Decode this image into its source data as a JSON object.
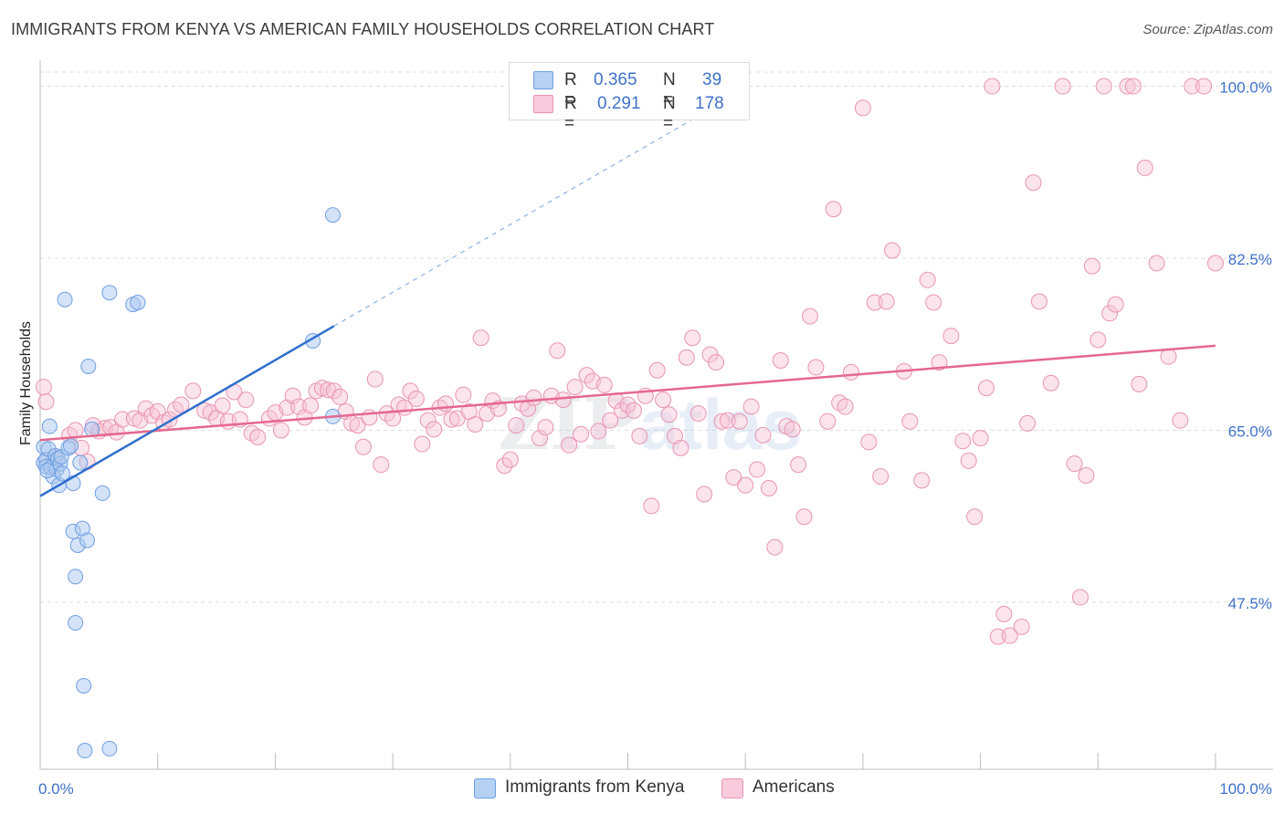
{
  "title": "IMMIGRANTS FROM KENYA VS AMERICAN FAMILY HOUSEHOLDS CORRELATION CHART",
  "source": "Source: ZipAtlas.com",
  "watermark": {
    "zip": "ZIP",
    "atlas": "atlas"
  },
  "colors": {
    "blue_fill": "#a9c8f0",
    "blue_stroke": "#6d9ee3",
    "blue_line": "#2f6fcd",
    "pink_fill": "#f6c3d4",
    "pink_stroke": "#e994b2",
    "pink_line": "#e5688f",
    "tick_label": "#3f72c8",
    "grid": "#dcdcdc"
  },
  "legend_top": {
    "rows": [
      {
        "r_key": "R =",
        "r_val": "0.365",
        "n_key": "N =",
        "n_val": "39"
      },
      {
        "r_key": "R =",
        "r_val": "0.291",
        "n_key": "N =",
        "n_val": "178"
      }
    ]
  },
  "legend_bottom": [
    "Immigrants from Kenya",
    "Americans"
  ],
  "chart_data": {
    "type": "scatter",
    "title": "IMMIGRANTS FROM KENYA VS AMERICAN FAMILY HOUSEHOLDS CORRELATION CHART",
    "xlabel": "",
    "ylabel": "Family Households",
    "xlim": [
      0,
      100
    ],
    "ylim": [
      30.5,
      102
    ],
    "x_tick_labels": [
      "0.0%",
      "100.0%"
    ],
    "y_ticks": [
      47.5,
      65.0,
      82.5,
      100.0
    ],
    "y_tick_labels": [
      "47.5%",
      "65.0%",
      "82.5%",
      "100.0%"
    ],
    "grid": true,
    "legend_position": "top-center",
    "series": [
      {
        "name": "Immigrants from Kenya",
        "R": 0.365,
        "N": 39,
        "trend": {
          "x0": 0.0,
          "y0": 58.3,
          "x1": 25.0,
          "y1": 75.6,
          "extends_dashed_to": {
            "x": 57.5,
            "y": 98.0
          }
        },
        "points": [
          [
            0.3,
            63.3
          ],
          [
            0.3,
            61.7
          ],
          [
            0.5,
            62.0
          ],
          [
            0.5,
            61.3
          ],
          [
            0.7,
            63.1
          ],
          [
            0.8,
            65.4
          ],
          [
            0.9,
            61.2
          ],
          [
            1.1,
            60.3
          ],
          [
            1.3,
            62.4
          ],
          [
            1.4,
            61.0
          ],
          [
            1.5,
            62.1
          ],
          [
            1.6,
            59.4
          ],
          [
            1.7,
            61.6
          ],
          [
            1.8,
            62.3
          ],
          [
            2.1,
            78.3
          ],
          [
            2.4,
            63.2
          ],
          [
            2.6,
            63.4
          ],
          [
            2.8,
            59.6
          ],
          [
            2.8,
            54.7
          ],
          [
            3.0,
            50.1
          ],
          [
            3.0,
            45.4
          ],
          [
            3.2,
            53.3
          ],
          [
            3.4,
            61.7
          ],
          [
            3.6,
            55.0
          ],
          [
            3.7,
            39.0
          ],
          [
            3.8,
            32.4
          ],
          [
            4.1,
            71.5
          ],
          [
            4.0,
            53.8
          ],
          [
            4.4,
            65.1
          ],
          [
            5.3,
            58.6
          ],
          [
            5.9,
            32.6
          ],
          [
            5.9,
            79.0
          ],
          [
            7.9,
            77.8
          ],
          [
            8.3,
            78.0
          ],
          [
            23.2,
            74.1
          ],
          [
            24.9,
            66.4
          ],
          [
            24.9,
            86.9
          ],
          [
            0.6,
            60.9
          ],
          [
            1.9,
            60.6
          ]
        ]
      },
      {
        "name": "Americans",
        "R": 0.291,
        "N": 178,
        "trend": {
          "x0": 0.0,
          "y0": 64.0,
          "x1": 100.0,
          "y1": 73.6
        },
        "points": [
          [
            0.3,
            69.4
          ],
          [
            0.5,
            67.9
          ],
          [
            1.2,
            62.2
          ],
          [
            2.5,
            64.5
          ],
          [
            3.0,
            65.0
          ],
          [
            3.5,
            63.2
          ],
          [
            4.0,
            61.8
          ],
          [
            4.5,
            65.5
          ],
          [
            5.0,
            64.9
          ],
          [
            5.5,
            65.2
          ],
          [
            6.0,
            65.3
          ],
          [
            6.5,
            64.8
          ],
          [
            7.0,
            66.1
          ],
          [
            8.0,
            66.2
          ],
          [
            8.5,
            66.0
          ],
          [
            9.0,
            67.2
          ],
          [
            9.5,
            66.5
          ],
          [
            10.0,
            66.9
          ],
          [
            10.5,
            65.8
          ],
          [
            11.0,
            66.1
          ],
          [
            11.5,
            67.1
          ],
          [
            12.0,
            67.6
          ],
          [
            13.0,
            69.0
          ],
          [
            14.0,
            67.0
          ],
          [
            14.5,
            66.8
          ],
          [
            15.0,
            66.2
          ],
          [
            15.5,
            67.5
          ],
          [
            16.0,
            65.9
          ],
          [
            16.5,
            68.9
          ],
          [
            17.0,
            66.1
          ],
          [
            17.5,
            68.1
          ],
          [
            18.0,
            64.7
          ],
          [
            18.5,
            64.3
          ],
          [
            19.5,
            66.2
          ],
          [
            20.0,
            66.8
          ],
          [
            20.5,
            65.0
          ],
          [
            21.0,
            67.3
          ],
          [
            21.5,
            68.5
          ],
          [
            22.0,
            67.4
          ],
          [
            22.5,
            66.3
          ],
          [
            23.0,
            67.5
          ],
          [
            23.5,
            69.0
          ],
          [
            24.0,
            69.3
          ],
          [
            24.5,
            69.1
          ],
          [
            25.0,
            69.0
          ],
          [
            25.5,
            68.4
          ],
          [
            26.0,
            66.9
          ],
          [
            26.5,
            65.7
          ],
          [
            27.0,
            65.5
          ],
          [
            27.5,
            63.3
          ],
          [
            28.0,
            66.3
          ],
          [
            28.5,
            70.2
          ],
          [
            29.0,
            61.5
          ],
          [
            29.5,
            66.7
          ],
          [
            30.0,
            66.2
          ],
          [
            30.5,
            67.6
          ],
          [
            31.0,
            67.3
          ],
          [
            31.5,
            69.0
          ],
          [
            32.0,
            68.2
          ],
          [
            32.5,
            63.6
          ],
          [
            33.0,
            66.0
          ],
          [
            33.5,
            65.1
          ],
          [
            34.0,
            67.3
          ],
          [
            34.5,
            67.7
          ],
          [
            35.0,
            66.1
          ],
          [
            35.5,
            66.2
          ],
          [
            36.0,
            68.6
          ],
          [
            36.5,
            66.9
          ],
          [
            37.0,
            65.6
          ],
          [
            37.5,
            74.4
          ],
          [
            38.0,
            66.7
          ],
          [
            38.5,
            68.0
          ],
          [
            39.0,
            67.2
          ],
          [
            39.5,
            61.4
          ],
          [
            40.0,
            62.0
          ],
          [
            40.5,
            65.5
          ],
          [
            41.0,
            67.7
          ],
          [
            41.5,
            67.2
          ],
          [
            42.0,
            68.3
          ],
          [
            42.5,
            64.2
          ],
          [
            43.0,
            65.3
          ],
          [
            43.5,
            68.5
          ],
          [
            44.0,
            73.1
          ],
          [
            44.5,
            68.1
          ],
          [
            45.0,
            63.5
          ],
          [
            45.5,
            69.4
          ],
          [
            46.0,
            64.6
          ],
          [
            46.5,
            70.6
          ],
          [
            47.0,
            70.0
          ],
          [
            47.5,
            64.9
          ],
          [
            48.0,
            69.6
          ],
          [
            48.5,
            66.0
          ],
          [
            49.0,
            68.0
          ],
          [
            49.5,
            67.0
          ],
          [
            50.0,
            67.6
          ],
          [
            50.5,
            67.0
          ],
          [
            51.0,
            64.4
          ],
          [
            51.5,
            68.5
          ],
          [
            52.0,
            57.3
          ],
          [
            52.5,
            71.1
          ],
          [
            53.0,
            68.1
          ],
          [
            53.5,
            66.6
          ],
          [
            54.0,
            64.4
          ],
          [
            54.5,
            63.2
          ],
          [
            55.0,
            72.4
          ],
          [
            55.5,
            74.4
          ],
          [
            56.0,
            66.7
          ],
          [
            56.5,
            58.5
          ],
          [
            57.0,
            72.7
          ],
          [
            57.5,
            71.9
          ],
          [
            58.0,
            65.9
          ],
          [
            58.5,
            66.0
          ],
          [
            59.0,
            60.2
          ],
          [
            59.5,
            65.9
          ],
          [
            60.0,
            59.4
          ],
          [
            60.5,
            67.4
          ],
          [
            61.0,
            61.0
          ],
          [
            61.5,
            64.5
          ],
          [
            62.0,
            59.1
          ],
          [
            62.5,
            53.1
          ],
          [
            63.0,
            72.1
          ],
          [
            63.5,
            65.4
          ],
          [
            64.0,
            65.1
          ],
          [
            64.5,
            61.5
          ],
          [
            65.0,
            56.2
          ],
          [
            65.5,
            76.6
          ],
          [
            66.0,
            71.4
          ],
          [
            67.0,
            65.9
          ],
          [
            67.5,
            87.5
          ],
          [
            68.0,
            67.8
          ],
          [
            68.5,
            67.4
          ],
          [
            69.0,
            70.9
          ],
          [
            70.0,
            97.8
          ],
          [
            70.5,
            63.8
          ],
          [
            71.0,
            78.0
          ],
          [
            71.5,
            60.3
          ],
          [
            72.0,
            78.1
          ],
          [
            72.5,
            83.3
          ],
          [
            73.5,
            71.0
          ],
          [
            74.0,
            65.9
          ],
          [
            75.0,
            59.9
          ],
          [
            75.5,
            80.3
          ],
          [
            76.0,
            78.0
          ],
          [
            76.5,
            71.9
          ],
          [
            77.5,
            74.6
          ],
          [
            78.5,
            63.9
          ],
          [
            79.0,
            61.9
          ],
          [
            79.5,
            56.2
          ],
          [
            80.0,
            64.2
          ],
          [
            80.5,
            69.3
          ],
          [
            81.0,
            100.0
          ],
          [
            81.5,
            44.0
          ],
          [
            82.0,
            46.3
          ],
          [
            82.5,
            44.1
          ],
          [
            83.5,
            45.0
          ],
          [
            84.0,
            65.7
          ],
          [
            84.5,
            90.2
          ],
          [
            85.0,
            78.1
          ],
          [
            86.0,
            69.8
          ],
          [
            87.0,
            100.0
          ],
          [
            88.0,
            61.6
          ],
          [
            88.5,
            48.0
          ],
          [
            89.0,
            60.4
          ],
          [
            89.5,
            81.7
          ],
          [
            90.0,
            74.2
          ],
          [
            90.5,
            100.0
          ],
          [
            91.0,
            76.9
          ],
          [
            91.5,
            77.8
          ],
          [
            92.5,
            100.0
          ],
          [
            93.0,
            100.0
          ],
          [
            93.5,
            69.7
          ],
          [
            94.0,
            91.7
          ],
          [
            95.0,
            82.0
          ],
          [
            96.0,
            72.5
          ],
          [
            97.0,
            66.0
          ],
          [
            98.0,
            100.0
          ],
          [
            99.0,
            100.0
          ],
          [
            100.0,
            82.0
          ]
        ]
      }
    ]
  }
}
